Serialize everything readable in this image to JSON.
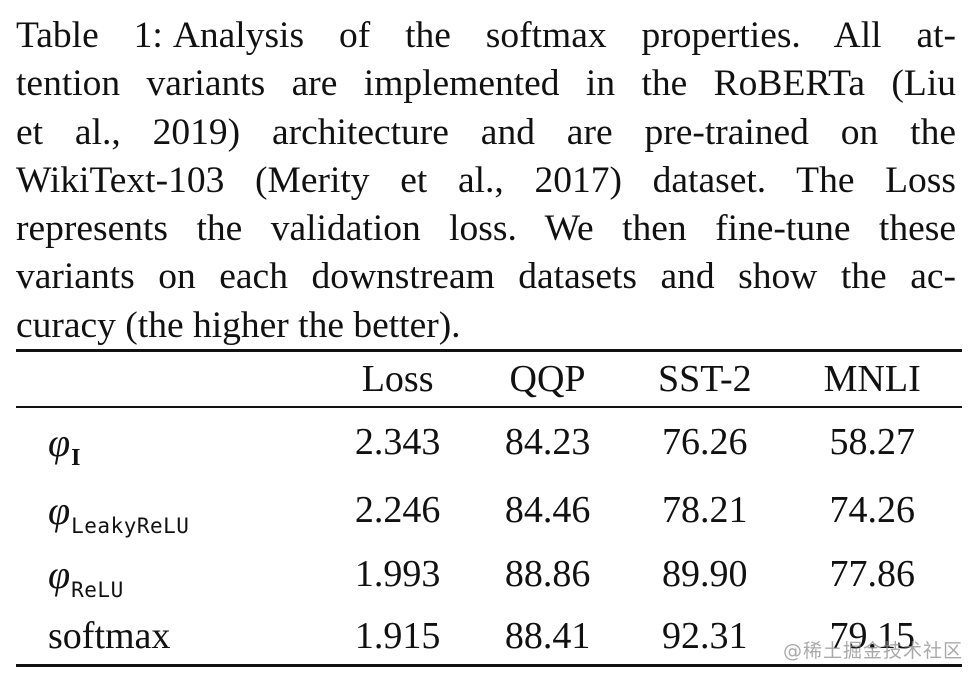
{
  "caption": {
    "label": "Table 1:",
    "lines": [
      "Analysis of the softmax properties. All at-",
      "tention variants are implemented in the RoBERTa (Liu",
      "et al., 2019) architecture and are pre-trained on the",
      "WikiText-103 (Merity et al., 2017) dataset. The Loss",
      "represents the validation loss. We then fine-tune these",
      "variants on each downstream datasets and show the ac-",
      "curacy (the higher the better)."
    ]
  },
  "table": {
    "columns": [
      "",
      "Loss",
      "QQP",
      "SST-2",
      "MNLI"
    ],
    "rows": [
      {
        "symbol": "φ",
        "subscript": "I",
        "values": [
          "2.343",
          "84.23",
          "76.26",
          "58.27"
        ]
      },
      {
        "symbol": "φ",
        "subscript": "LeakyReLU",
        "values": [
          "2.246",
          "84.46",
          "78.21",
          "74.26"
        ]
      },
      {
        "symbol": "φ",
        "subscript": "ReLU",
        "values": [
          "1.993",
          "88.86",
          "89.90",
          "77.86"
        ]
      },
      {
        "label": "softmax",
        "values": [
          "1.915",
          "88.41",
          "92.31",
          "79.15"
        ]
      }
    ]
  },
  "watermark": "@稀土掘金技术社区"
}
